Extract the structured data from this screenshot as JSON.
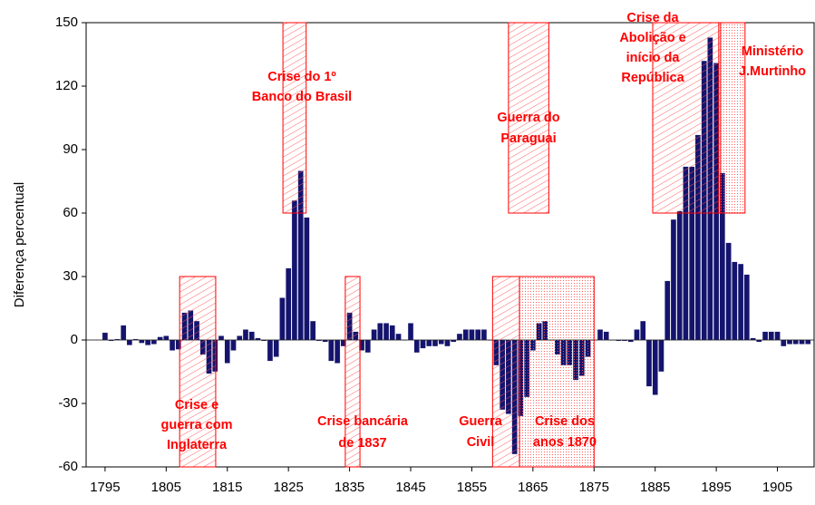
{
  "chart_data": {
    "type": "bar",
    "ylabel": "Diferença percentual",
    "color": "#14146e",
    "x": [
      1795,
      1796,
      1797,
      1798,
      1799,
      1800,
      1801,
      1802,
      1803,
      1804,
      1805,
      1806,
      1807,
      1808,
      1809,
      1810,
      1811,
      1812,
      1813,
      1814,
      1815,
      1816,
      1817,
      1818,
      1819,
      1820,
      1821,
      1822,
      1823,
      1824,
      1825,
      1826,
      1827,
      1828,
      1829,
      1830,
      1831,
      1832,
      1833,
      1834,
      1835,
      1836,
      1837,
      1838,
      1839,
      1840,
      1841,
      1842,
      1843,
      1844,
      1845,
      1846,
      1847,
      1848,
      1849,
      1850,
      1851,
      1852,
      1853,
      1854,
      1855,
      1856,
      1857,
      1858,
      1859,
      1860,
      1861,
      1862,
      1863,
      1864,
      1865,
      1866,
      1867,
      1868,
      1869,
      1870,
      1871,
      1872,
      1873,
      1874,
      1875,
      1876,
      1877,
      1878,
      1879,
      1880,
      1881,
      1882,
      1883,
      1884,
      1885,
      1886,
      1887,
      1888,
      1889,
      1890,
      1891,
      1892,
      1893,
      1894,
      1895,
      1896,
      1897,
      1898,
      1899,
      1900,
      1901,
      1902,
      1903,
      1904,
      1905,
      1906,
      1907,
      1908,
      1909,
      1910
    ],
    "values": [
      3.5,
      -0.5,
      0.5,
      7,
      -2.5,
      0.5,
      -1.5,
      -2.5,
      -2,
      1.5,
      2,
      -5,
      -4.5,
      13,
      14,
      9,
      -7,
      -16,
      -15,
      2,
      -11,
      -5,
      2,
      5,
      4,
      1,
      -0.5,
      -10,
      -8,
      20,
      34,
      66,
      80,
      58,
      9,
      -0.5,
      -1,
      -10,
      -11,
      -3,
      13,
      4,
      -5,
      -6,
      5,
      8,
      8,
      7,
      3,
      0,
      8,
      -6,
      -4,
      -3,
      -3,
      -2,
      -3,
      -1,
      3,
      5,
      5,
      5,
      5,
      0,
      -12,
      -33,
      -35,
      -54,
      -36,
      -27,
      -5,
      8,
      9,
      0,
      -7,
      -12,
      -12,
      -19,
      -17,
      -8,
      0,
      5,
      4,
      0,
      -0.5,
      -0.5,
      -1,
      5,
      9,
      -22,
      -26,
      -15,
      28,
      57,
      61,
      82,
      82,
      97,
      132,
      143,
      131,
      79,
      46,
      37,
      36,
      31,
      1,
      -1,
      4,
      4,
      4,
      -3,
      -2,
      -2,
      -2,
      -2
    ],
    "xlim": [
      1791.9,
      1911
    ],
    "xticks": [
      1795,
      1805,
      1815,
      1825,
      1835,
      1845,
      1855,
      1865,
      1875,
      1885,
      1895,
      1905
    ],
    "ylim": [
      -60,
      150
    ],
    "yticks": [
      -60,
      -30,
      0,
      30,
      60,
      90,
      120,
      150
    ],
    "annotation_color": "#ff0000",
    "annotations": [
      {
        "lines": [
          "Crise e",
          "guerra com",
          "Inglaterra"
        ],
        "x": [
          1807.2,
          1813.1
        ],
        "y": [
          -60,
          30
        ],
        "fill": "hatch"
      },
      {
        "lines": [
          "Crise do 1º",
          "Banco do Brasil"
        ],
        "x": [
          1824.1,
          1827.9
        ],
        "y": [
          60,
          150
        ],
        "fill": "hatch"
      },
      {
        "lines": [
          "Crise bancária",
          "de 1837"
        ],
        "x": [
          1834.3,
          1836.7
        ],
        "y": [
          -60,
          30
        ],
        "fill": "hatch"
      },
      {
        "lines": [
          "Guerra do",
          "Paraguai"
        ],
        "x": [
          1861.0,
          1867.6
        ],
        "y": [
          60,
          150
        ],
        "fill": "hatch"
      },
      {
        "lines": [
          "Guerra",
          "Civil"
        ],
        "x": [
          1858.4,
          1862.8
        ],
        "y": [
          -60,
          30
        ],
        "fill": "hatch"
      },
      {
        "lines": [
          "Crise dos",
          "anos 1870"
        ],
        "x": [
          1862.8,
          1875.0
        ],
        "y": [
          -60,
          30
        ],
        "fill": "dots"
      },
      {
        "lines": [
          "Crise da",
          "Abolição e",
          "início da",
          "República"
        ],
        "x": [
          1884.6,
          1895.7
        ],
        "y": [
          60,
          150
        ],
        "fill": "hatch"
      },
      {
        "lines": [
          "Ministério",
          "J.Murtinho"
        ],
        "x": [
          1895.4,
          1899.7
        ],
        "y": [
          60,
          150
        ],
        "fill": "dots"
      }
    ]
  }
}
